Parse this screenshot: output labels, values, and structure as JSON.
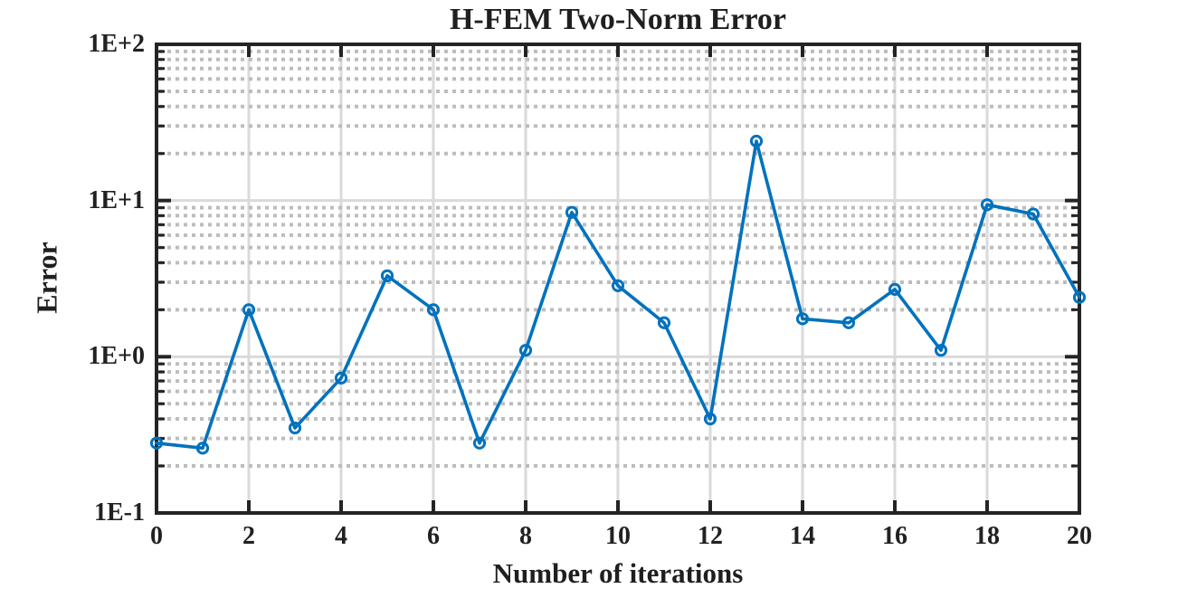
{
  "chart_data": {
    "type": "line",
    "title": "H-FEM Two-Norm Error",
    "xlabel": "Number of iterations",
    "ylabel": "Error",
    "series_name": "H-FEM two-norm error",
    "x": [
      0,
      1,
      2,
      3,
      4,
      5,
      6,
      7,
      8,
      9,
      10,
      11,
      12,
      13,
      14,
      15,
      16,
      17,
      18,
      19,
      20
    ],
    "y": [
      0.28,
      0.26,
      2.0,
      0.35,
      0.73,
      3.3,
      2.0,
      0.28,
      1.1,
      8.4,
      2.85,
      1.65,
      0.4,
      24,
      1.75,
      1.65,
      2.7,
      1.1,
      9.4,
      8.2,
      2.4
    ],
    "x_ticks": [
      0,
      2,
      4,
      6,
      8,
      10,
      12,
      14,
      16,
      18,
      20
    ],
    "y_ticks": [
      {
        "label": "1E-1",
        "value": 0.1
      },
      {
        "label": "1E+0",
        "value": 1
      },
      {
        "label": "1E+1",
        "value": 10
      },
      {
        "label": "1E+2",
        "value": 100
      }
    ],
    "xlim": [
      0,
      20
    ],
    "ylim": [
      0.1,
      100
    ],
    "y_scale": "log",
    "x_scale": "linear",
    "grid": {
      "major": true,
      "minor_dotted": true
    },
    "legend": null,
    "marker": "open-circle",
    "colors": {
      "line": "#0072BD",
      "axis": "#242424",
      "text": "#1f1f1f",
      "grid_major": "#dadada",
      "grid_minor": "#bdbdbd",
      "background": "#ffffff"
    }
  }
}
